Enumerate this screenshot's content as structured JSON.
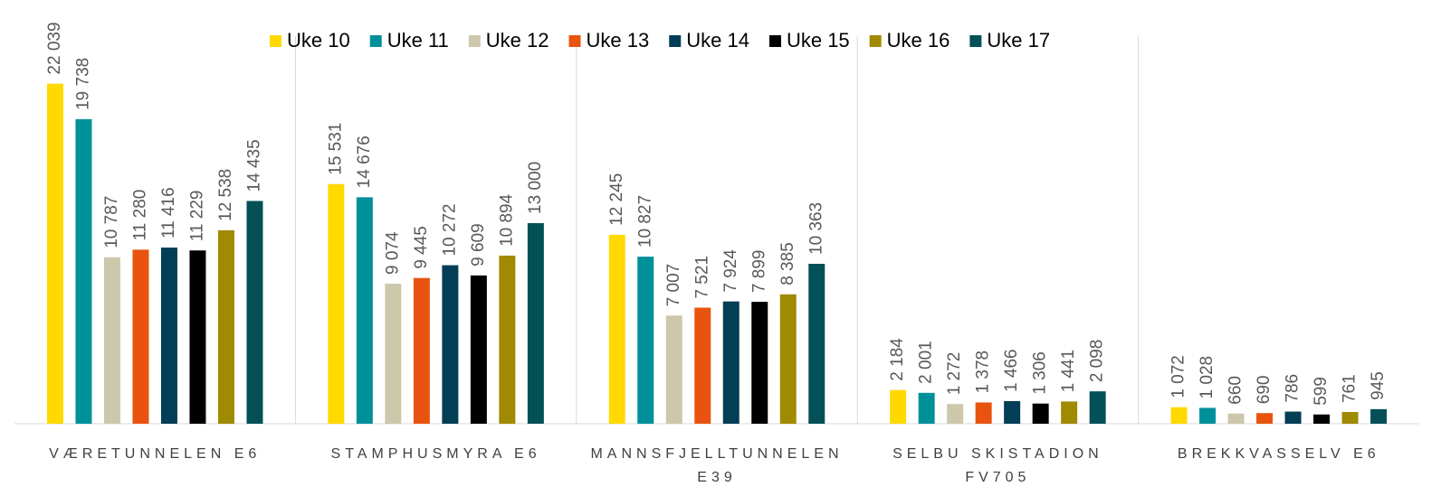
{
  "chart_data": {
    "type": "bar",
    "categories": [
      "VÆRETUNNELEN E6",
      "STAMPHUSMYRA E6",
      "MANNSFJELLTUNNELEN E39",
      "SELBU SKISTADION FV705",
      "BREKKVASSELV E6"
    ],
    "ylim": [
      0,
      25000
    ],
    "legend": "top",
    "series": [
      {
        "name": "Uke 10",
        "color": "#ffd900",
        "values": [
          22039,
          15531,
          12245,
          2184,
          1072
        ],
        "value_labels": [
          "22 039",
          "15 531",
          "12 245",
          "2 184",
          "1 072"
        ]
      },
      {
        "name": "Uke 11",
        "color": "#00909a",
        "values": [
          19738,
          14676,
          10827,
          2001,
          1028
        ],
        "value_labels": [
          "19 738",
          "14 676",
          "10 827",
          "2 001",
          "1 028"
        ]
      },
      {
        "name": "Uke 12",
        "color": "#cdc7ab",
        "values": [
          10787,
          9074,
          7007,
          1272,
          660
        ],
        "value_labels": [
          "10 787",
          "9 074",
          "7 007",
          "1 272",
          "660"
        ]
      },
      {
        "name": "Uke 13",
        "color": "#e8540f",
        "values": [
          11280,
          9445,
          7521,
          1378,
          690
        ],
        "value_labels": [
          "11 280",
          "9 445",
          "7 521",
          "1 378",
          "690"
        ]
      },
      {
        "name": "Uke 14",
        "color": "#023e55",
        "values": [
          11416,
          10272,
          7924,
          1466,
          786
        ],
        "value_labels": [
          "11 416",
          "10 272",
          "7 924",
          "1 466",
          "786"
        ]
      },
      {
        "name": "Uke 15",
        "color": "#000000",
        "values": [
          11229,
          9609,
          7899,
          1306,
          599
        ],
        "value_labels": [
          "11 229",
          "9 609",
          "7 899",
          "1 306",
          "599"
        ]
      },
      {
        "name": "Uke 16",
        "color": "#a08a00",
        "values": [
          12538,
          10894,
          8385,
          1441,
          761
        ],
        "value_labels": [
          "12 538",
          "10 894",
          "8 385",
          "1 441",
          "761"
        ]
      },
      {
        "name": "Uke 17",
        "color": "#035157",
        "values": [
          14435,
          13000,
          10363,
          2098,
          945
        ],
        "value_labels": [
          "14 435",
          "13 000",
          "10 363",
          "2 098",
          "945"
        ]
      }
    ]
  }
}
